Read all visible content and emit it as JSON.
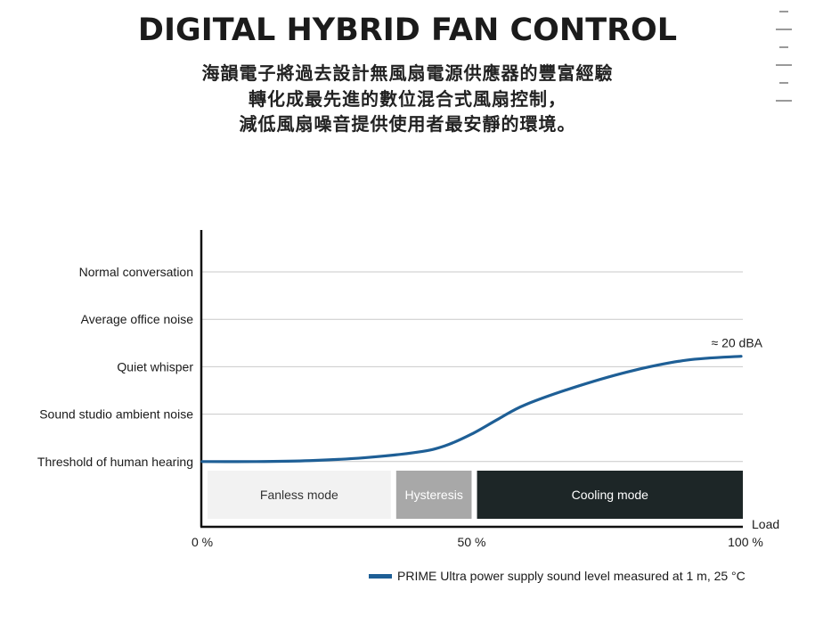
{
  "title": "DIGITAL HYBRID FAN CONTROL",
  "subtitle_lines": [
    "海韻電子將過去設計無風扇電源供應器的豐富經驗",
    "轉化成最先進的數位混合式風扇控制，",
    "減低風扇噪音提供使用者最安靜的環境。"
  ],
  "chart_data": {
    "type": "line",
    "xlabel": "Load",
    "x_ticks": [
      "0 %",
      "50 %",
      "100 %"
    ],
    "xlim": [
      0,
      100
    ],
    "y_levels": [
      "Normal conversation",
      "Average office noise",
      "Quiet whisper",
      "Sound studio ambient noise",
      "Threshold of human hearing"
    ],
    "zones": [
      {
        "label": "Fanless mode",
        "from": 0,
        "to": 35,
        "color": "#f2f2f2",
        "text_color": "#333333"
      },
      {
        "label": "Hysteresis",
        "from": 36,
        "to": 50,
        "color": "#a8a8a8",
        "text_color": "#ffffff"
      },
      {
        "label": "Cooling mode",
        "from": 51,
        "to": 100,
        "color": "#1d2627",
        "text_color": "#ffffff"
      }
    ],
    "series": [
      {
        "name": "PRIME Ultra power supply sound level measured at 1 m, 25 °C",
        "color": "#1e5f96",
        "points": [
          [
            0,
            0
          ],
          [
            10,
            0
          ],
          [
            20,
            0.02
          ],
          [
            30,
            0.08
          ],
          [
            40,
            0.2
          ],
          [
            45,
            0.33
          ],
          [
            50,
            0.58
          ],
          [
            55,
            0.9
          ],
          [
            60,
            1.2
          ],
          [
            70,
            1.6
          ],
          [
            80,
            1.92
          ],
          [
            90,
            2.14
          ],
          [
            100,
            2.22
          ]
        ]
      }
    ],
    "annotation": "≈ 20 dBA",
    "grid": true
  }
}
